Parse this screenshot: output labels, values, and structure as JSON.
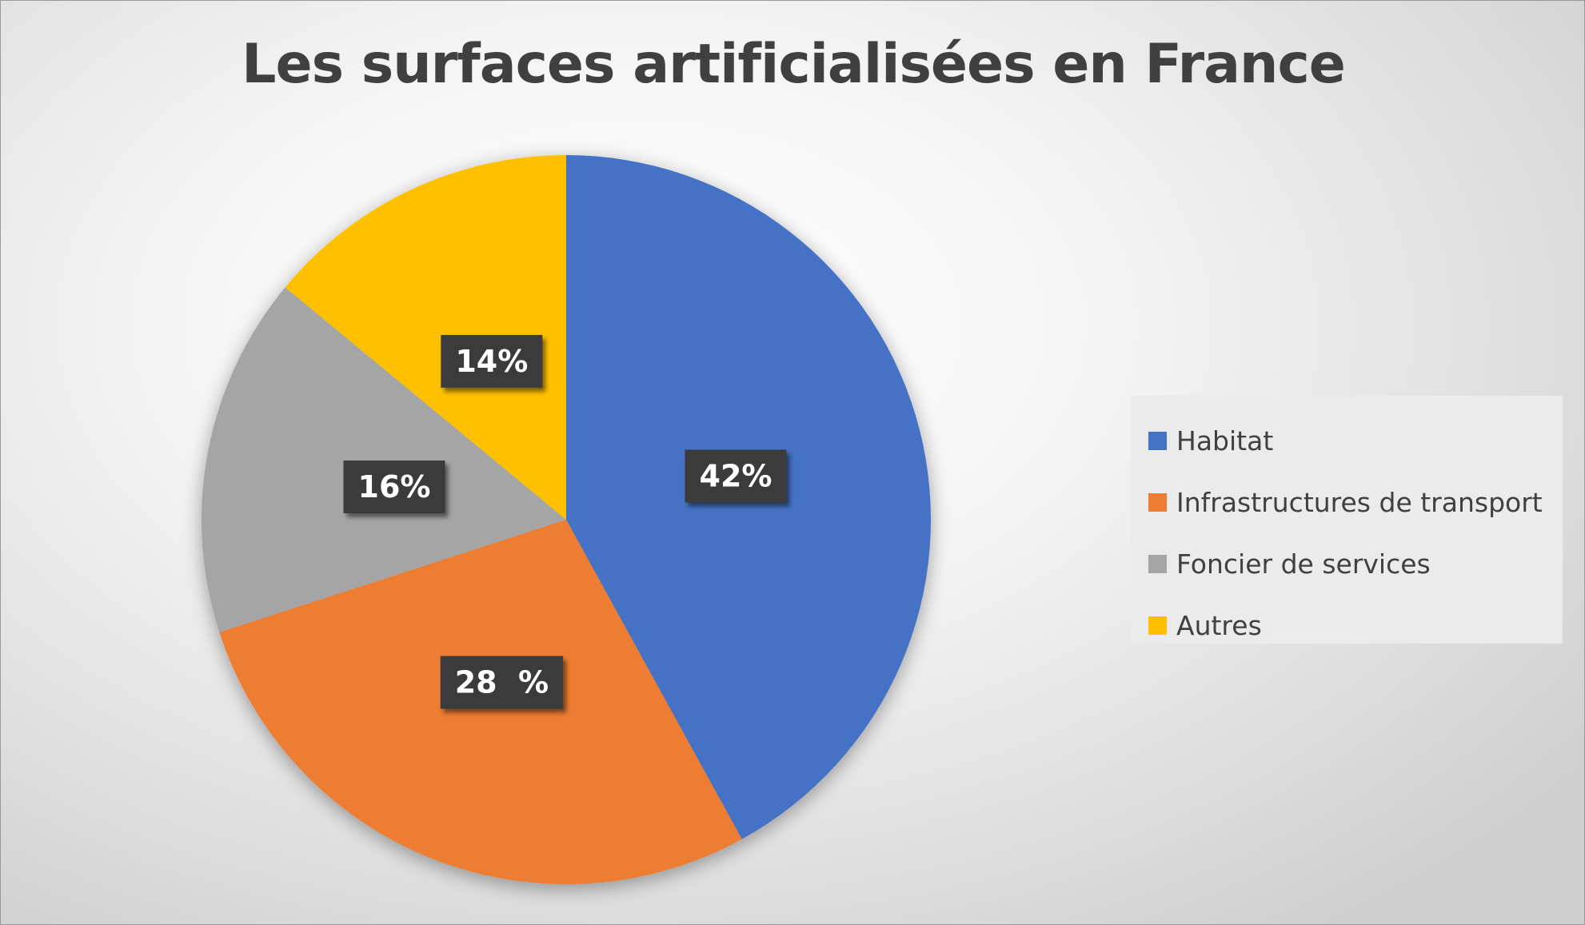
{
  "chart_data": {
    "type": "pie",
    "title": "Les surfaces artificialisées en France",
    "categories": [
      "Habitat",
      "Infrastructures de transport",
      "Foncier de services",
      "Autres"
    ],
    "values": [
      42,
      28,
      16,
      14
    ],
    "data_labels": [
      "42%",
      "28  %",
      "16%",
      "14%"
    ],
    "colors": [
      "#4472C4",
      "#ED7D31",
      "#A5A5A5",
      "#FFC000"
    ],
    "legend_position": "right",
    "start_angle": "12 o'clock",
    "direction": "clockwise"
  }
}
